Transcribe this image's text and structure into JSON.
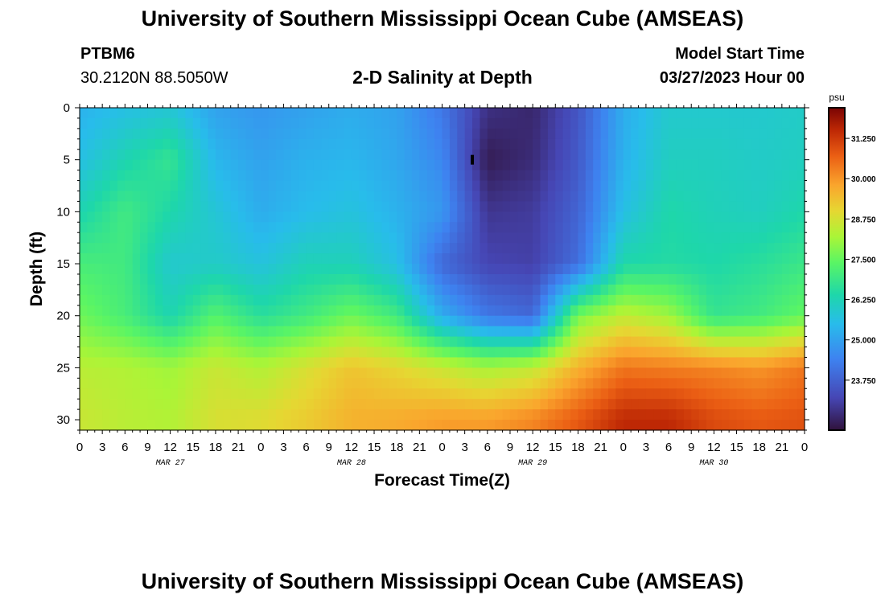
{
  "header": {
    "title": "University of Southern Mississippi Ocean Cube (AMSEAS)",
    "station_id": "PTBM6",
    "station_coords": "30.2120N  88.5050W",
    "chart_title": "2-D Salinity at Depth",
    "model_start_label": "Model Start Time",
    "model_start_value": "03/27/2023 Hour 00"
  },
  "footer": {
    "title": "University of Southern Mississippi Ocean Cube (AMSEAS)"
  },
  "chart_data": {
    "type": "heatmap",
    "title": "2-D Salinity at Depth",
    "xlabel": "Forecast Time(Z)",
    "ylabel": "Depth (ft)",
    "x_range_hours": [
      0,
      96
    ],
    "x_tick_labels": [
      "0",
      "3",
      "6",
      "9",
      "12",
      "15",
      "18",
      "21",
      "0",
      "3",
      "6",
      "9",
      "12",
      "15",
      "18",
      "21",
      "0",
      "3",
      "6",
      "9",
      "12",
      "15",
      "18",
      "21",
      "0",
      "3",
      "6",
      "9",
      "12",
      "15",
      "18",
      "21",
      "0"
    ],
    "date_labels": [
      {
        "label": "MAR 27",
        "hour": 12
      },
      {
        "label": "MAR 28",
        "hour": 36
      },
      {
        "label": "MAR 29",
        "hour": 60
      },
      {
        "label": "MAR 30",
        "hour": 84
      }
    ],
    "ylim": [
      0,
      31
    ],
    "y_ticks": [
      0,
      5,
      10,
      15,
      20,
      25,
      30
    ],
    "colorbar": {
      "unit": "psu",
      "min": 22.2,
      "max": 32.2,
      "ticks": [
        "31.250",
        "30.000",
        "28.750",
        "27.500",
        "26.250",
        "25.000",
        "23.750"
      ]
    },
    "grid_depths_ft": [
      0,
      5,
      10,
      15,
      20,
      25,
      30
    ],
    "grid_hours": [
      0,
      6,
      12,
      18,
      24,
      30,
      36,
      42,
      48,
      54,
      60,
      66,
      72,
      78,
      84,
      90,
      96
    ],
    "salinity_psu": [
      [
        25.3,
        25.6,
        25.8,
        25.0,
        24.8,
        25.0,
        25.2,
        25.0,
        24.2,
        22.8,
        22.6,
        23.5,
        25.2,
        25.9,
        25.9,
        25.9,
        26.0
      ],
      [
        25.6,
        26.3,
        26.8,
        25.4,
        25.0,
        25.3,
        25.4,
        25.1,
        24.5,
        22.4,
        22.7,
        23.6,
        25.3,
        26.1,
        26.1,
        26.0,
        26.1
      ],
      [
        26.3,
        27.0,
        26.4,
        25.8,
        25.2,
        25.5,
        25.7,
        25.3,
        24.8,
        22.9,
        23.0,
        23.8,
        25.6,
        26.4,
        26.2,
        26.1,
        26.4
      ],
      [
        27.1,
        27.0,
        25.9,
        26.0,
        25.7,
        26.2,
        26.2,
        25.6,
        23.9,
        23.2,
        23.1,
        24.0,
        26.4,
        26.5,
        26.4,
        26.6,
        26.9
      ],
      [
        27.6,
        27.1,
        26.3,
        27.3,
        26.6,
        27.0,
        27.6,
        27.0,
        25.2,
        24.2,
        23.9,
        27.7,
        28.5,
        28.1,
        26.8,
        27.0,
        27.5
      ],
      [
        28.4,
        28.3,
        28.1,
        28.6,
        28.3,
        28.8,
        29.3,
        29.0,
        28.6,
        28.2,
        28.5,
        29.6,
        30.4,
        30.3,
        30.2,
        30.0,
        30.4
      ],
      [
        28.6,
        28.4,
        28.3,
        28.8,
        28.9,
        29.2,
        29.6,
        29.7,
        29.9,
        29.9,
        30.2,
        30.8,
        31.5,
        31.5,
        31.0,
        30.8,
        30.9
      ]
    ],
    "marker": {
      "hour": 52,
      "depth_ft": 5
    }
  }
}
